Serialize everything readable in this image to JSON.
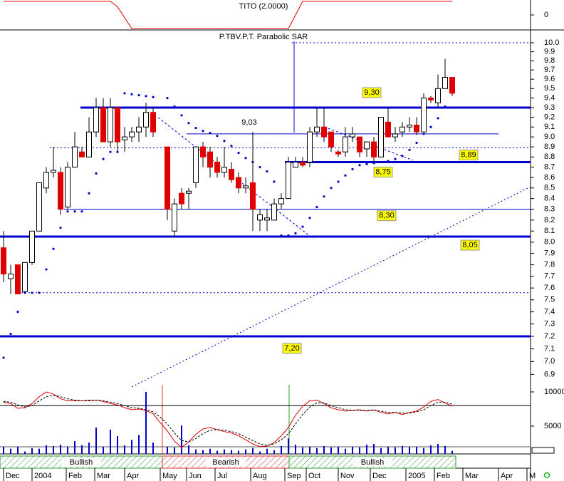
{
  "chart_data": [
    {
      "type": "line",
      "title": "TITO (2.0000)",
      "x": [
        0,
        1,
        2,
        3,
        4,
        5,
        6,
        7,
        8,
        9,
        10,
        11,
        12,
        13,
        14,
        15,
        16,
        17,
        18,
        19,
        20,
        21,
        22,
        23,
        24,
        25,
        26,
        27,
        28,
        29,
        30,
        31,
        32,
        33,
        34,
        35,
        36,
        37,
        38,
        39,
        40,
        41,
        42,
        43,
        44,
        45,
        46,
        47,
        48,
        49,
        50,
        51,
        52,
        53,
        54,
        55,
        56,
        57,
        58,
        59,
        60,
        61,
        62,
        63
      ],
      "series": [
        {
          "color": "#e00000",
          "values": [
            1,
            1,
            1,
            1,
            1,
            1,
            1,
            1,
            1,
            1,
            1,
            1,
            1,
            1,
            1,
            1,
            0.6,
            -0.2,
            -1,
            -1,
            -1,
            -1,
            -1,
            -1,
            -1,
            -1,
            -1,
            -1,
            -1,
            -1,
            -1,
            -1,
            -1,
            -1,
            -1,
            -1,
            -1,
            -1,
            -1,
            -1,
            -1,
            0,
            1,
            1,
            1,
            1,
            1,
            1,
            1,
            1,
            1,
            1,
            1,
            1,
            1,
            1,
            1,
            1,
            1,
            1,
            1,
            1,
            1,
            1
          ]
        }
      ],
      "xlim": [
        -0.5,
        74
      ],
      "ylim": [
        -1.1,
        1.1
      ],
      "yticks": [
        0
      ]
    },
    {
      "type": "candlestick",
      "title": "P.TBV.P.T. Parabolic SAR",
      "x": [
        0,
        1,
        2,
        3,
        4,
        5,
        6,
        7,
        8,
        9,
        10,
        11,
        12,
        13,
        14,
        15,
        16,
        17,
        18,
        19,
        20,
        21,
        22,
        23,
        24,
        25,
        26,
        27,
        28,
        29,
        30,
        31,
        32,
        33,
        34,
        35,
        36,
        37,
        38,
        39,
        40,
        41,
        42,
        43,
        44,
        45,
        46,
        47,
        48,
        49,
        50,
        51,
        52,
        53,
        54,
        55,
        56,
        57,
        58,
        59,
        60,
        61,
        62,
        63
      ],
      "open": [
        7.95,
        7.68,
        7.8,
        7.57,
        7.82,
        8.1,
        8.5,
        8.65,
        8.65,
        8.32,
        8.7,
        8.85,
        8.8,
        9.05,
        9.3,
        8.95,
        9.3,
        8.97,
        9.0,
        9.05,
        9.1,
        9.25,
        null,
        8.9,
        8.1,
        8.45,
        8.45,
        8.55,
        8.9,
        8.85,
        8.75,
        8.65,
        8.68,
        8.6,
        8.5,
        8.55,
        8.2,
        8.2,
        8.2,
        8.35,
        8.4,
        8.7,
        8.75,
        8.75,
        9.05,
        9.1,
        9.05,
        8.85,
        8.85,
        9.0,
        9.0,
        8.88,
        8.95,
        8.8,
        9.15,
        9.0,
        9.05,
        9.1,
        9.12,
        9.05,
        9.4,
        9.35,
        9.5,
        9.62
      ],
      "high": [
        8.1,
        7.8,
        7.8,
        7.82,
        8.1,
        8.55,
        8.7,
        8.9,
        8.7,
        8.75,
        9.05,
        8.9,
        9.2,
        9.4,
        9.4,
        9.4,
        9.3,
        9.1,
        9.1,
        9.2,
        9.35,
        9.3,
        null,
        8.9,
        8.4,
        8.5,
        8.5,
        8.9,
        8.95,
        8.9,
        8.8,
        8.9,
        8.75,
        8.65,
        8.6,
        9.05,
        8.3,
        8.3,
        8.4,
        8.45,
        8.8,
        8.8,
        8.8,
        9.1,
        9.3,
        9.3,
        9.05,
        8.87,
        9.1,
        9.1,
        9.0,
        8.95,
        9.0,
        9.2,
        9.3,
        9.1,
        9.15,
        9.2,
        9.2,
        9.45,
        9.42,
        9.65,
        9.82,
        9.62
      ],
      "low": [
        7.65,
        7.55,
        7.55,
        7.55,
        7.8,
        8.1,
        8.45,
        8.6,
        8.25,
        8.3,
        8.7,
        8.8,
        8.8,
        9.0,
        8.95,
        8.9,
        8.85,
        8.85,
        8.95,
        8.95,
        9.0,
        9.0,
        null,
        8.2,
        8.05,
        8.3,
        8.3,
        8.5,
        8.7,
        8.6,
        8.6,
        8.6,
        8.55,
        8.45,
        8.45,
        8.1,
        8.1,
        8.1,
        8.2,
        8.3,
        8.4,
        8.7,
        8.7,
        8.7,
        9.0,
        8.95,
        8.85,
        8.8,
        8.8,
        8.95,
        8.8,
        8.8,
        8.75,
        8.8,
        9.0,
        8.95,
        9.0,
        9.05,
        9.02,
        9.05,
        9.35,
        9.3,
        9.5,
        9.42
      ],
      "close": [
        7.72,
        7.72,
        7.55,
        7.82,
        8.1,
        8.55,
        8.65,
        8.67,
        8.3,
        8.7,
        8.9,
        8.8,
        9.05,
        9.3,
        8.95,
        9.3,
        8.95,
        9.0,
        9.05,
        9.1,
        9.25,
        9.05,
        null,
        8.3,
        8.35,
        8.35,
        8.47,
        8.9,
        8.8,
        8.7,
        8.65,
        8.7,
        8.58,
        8.5,
        8.52,
        8.3,
        8.25,
        8.22,
        8.35,
        8.4,
        8.75,
        8.75,
        8.72,
        9.05,
        9.1,
        9.0,
        8.9,
        8.83,
        9.0,
        9.03,
        8.85,
        8.95,
        8.8,
        9.2,
        9.0,
        9.03,
        9.1,
        9.12,
        9.05,
        9.4,
        9.38,
        9.5,
        9.62,
        9.45
      ],
      "color_up": "#ffffff",
      "color_down": "#e00000",
      "sar": {
        "color": "#0000cc",
        "values": [
          7.03,
          7.22,
          7.4,
          7.56,
          7.56,
          7.56,
          7.76,
          7.94,
          8.13,
          8.28,
          8.28,
          8.28,
          8.45,
          8.64,
          8.78,
          8.85,
          8.85,
          9.45,
          9.44,
          9.43,
          9.42,
          9.41,
          null,
          9.4,
          9.31,
          9.22,
          9.14,
          9.09,
          9.06,
          9.04,
          9.01,
          8.96,
          8.91,
          8.84,
          8.79,
          8.75,
          8.7,
          8.66,
          8.56,
          8.06,
          8.06,
          8.08,
          8.14,
          8.22,
          8.32,
          8.42,
          8.5,
          8.56,
          8.62,
          8.68,
          8.72,
          8.73,
          8.74,
          8.75,
          8.76,
          8.78,
          8.81,
          8.87,
          8.94,
          9.03,
          9.1,
          9.19,
          9.31,
          null
        ]
      },
      "level_color": "#0000cc",
      "levels": [
        {
          "value": 9.3,
          "label": "9,30",
          "style": "thick",
          "box": true
        },
        {
          "value": 9.03,
          "label": "9,03",
          "style": "thin",
          "box": false
        },
        {
          "value": 8.89,
          "label": "8,89",
          "style": "dotted",
          "box": true
        },
        {
          "value": 8.75,
          "label": "8,75",
          "style": "thick",
          "box": true
        },
        {
          "value": 8.3,
          "label": "8,30",
          "style": "thin",
          "box": true
        },
        {
          "value": 8.05,
          "label": "8,05",
          "style": "thick",
          "box": true
        },
        {
          "value": 7.56,
          "style": "dotted"
        },
        {
          "value": 7.2,
          "label": "7,20",
          "style": "thick",
          "box": true
        },
        {
          "value": 10.0,
          "style": "dotted"
        }
      ],
      "log_scale": true,
      "xlim": [
        -0.5,
        74
      ],
      "ylim": [
        6.82,
        10.12
      ],
      "yticks": [
        {
          "value": 10,
          "label": "10.0"
        },
        9.9,
        9.8,
        9.7,
        9.6,
        9.5,
        9.4,
        9.3,
        9.2,
        9.1,
        {
          "value": 9,
          "label": "9.0"
        },
        8.9,
        8.8,
        8.7,
        8.6,
        8.5,
        8.4,
        8.3,
        8.2,
        8.1,
        {
          "value": 8,
          "label": "8.0"
        },
        7.9,
        7.8,
        7.7,
        7.6,
        7.5,
        7.4,
        7.3,
        7.2,
        7.1,
        {
          "value": 7,
          "label": "7.0"
        },
        6.9
      ]
    },
    {
      "type": "bar",
      "x": [
        0,
        1,
        2,
        3,
        4,
        5,
        6,
        7,
        8,
        9,
        10,
        11,
        12,
        13,
        14,
        15,
        16,
        17,
        18,
        19,
        20,
        21,
        22,
        23,
        24,
        25,
        26,
        27,
        28,
        29,
        30,
        31,
        32,
        33,
        34,
        35,
        36,
        37,
        38,
        39,
        40,
        41,
        42,
        43,
        44,
        45,
        46,
        47,
        48,
        49,
        50,
        51,
        52,
        53,
        54,
        55,
        56,
        57,
        58,
        59,
        60,
        61,
        62,
        63
      ],
      "series": [
        {
          "color": "#0000cc",
          "values": [
            2000,
            1700,
            2000,
            1300,
            1800,
            1700,
            2200,
            2100,
            2300,
            2000,
            2800,
            2200,
            2600,
            4800,
            2000,
            4480,
            3540,
            2200,
            3000,
            3700,
            10000,
            2600,
            null,
            2000,
            1900,
            5100,
            2200,
            1600,
            1500,
            1700,
            1400,
            1600,
            1500,
            1400,
            1600,
            1800,
            1300,
            1700,
            1500,
            2100,
            3200,
            2300,
            1900,
            2000,
            1800,
            2100,
            1900,
            2000,
            1700,
            2000,
            1900,
            2300,
            2400,
            1800,
            2000,
            1900,
            2100,
            2000,
            2000,
            1800,
            2200,
            2400,
            2100,
            1400
          ]
        }
      ],
      "lines": [
        {
          "color": "#e00000",
          "dashed": false,
          "values": [
            8500,
            8300,
            7600,
            7700,
            8300,
            9300,
            10000,
            9700,
            9000,
            8700,
            8700,
            8700,
            8800,
            8800,
            8600,
            8300,
            8100,
            7700,
            7400,
            7500,
            7300,
            6800,
            5500,
            4300,
            2800,
            1900,
            2700,
            3800,
            4600,
            4800,
            4500,
            4200,
            4000,
            3600,
            3000,
            2400,
            2000,
            2100,
            2600,
            3600,
            4800,
            6600,
            7900,
            8700,
            8800,
            8300,
            7700,
            7400,
            7200,
            7300,
            7400,
            7200,
            7400,
            7000,
            6800,
            7000,
            6700,
            7000,
            7200,
            7800,
            8600,
            8900,
            8400,
            7900
          ]
        },
        {
          "color": "#000000",
          "dashed": true,
          "values": [
            8600,
            8500,
            8100,
            7800,
            8000,
            8700,
            9300,
            9500,
            9300,
            9000,
            8800,
            8700,
            8700,
            8800,
            8700,
            8500,
            8300,
            8000,
            7700,
            7600,
            7400,
            7100,
            6300,
            5300,
            4000,
            2900,
            2700,
            3200,
            3900,
            4400,
            4500,
            4400,
            4200,
            3900,
            3400,
            2900,
            2400,
            2200,
            2400,
            3000,
            3900,
            5300,
            6700,
            7800,
            8400,
            8400,
            8000,
            7700,
            7400,
            7300,
            7300,
            7300,
            7300,
            7200,
            7000,
            7000,
            6900,
            6900,
            7100,
            7400,
            8000,
            8500,
            8500,
            8200
          ]
        }
      ],
      "reference": 8000,
      "regimes": [
        {
          "label": "Bullish",
          "from": -0.5,
          "to": 22.3,
          "color": "#2e9e2e"
        },
        {
          "label": "Bearish",
          "from": 22.3,
          "to": 40.1,
          "color": "#e03030"
        },
        {
          "label": "Bullish",
          "from": 40.1,
          "to": 63.5,
          "color": "#2e9e2e"
        }
      ],
      "xlim": [
        -0.5,
        74
      ],
      "ylim": [
        940,
        11040
      ],
      "yticks": [
        10000,
        5000
      ],
      "xticks": [
        {
          "value": 0,
          "label": "Dec"
        },
        {
          "value": 4,
          "label": "2004"
        },
        {
          "value": 8.8,
          "label": "Feb"
        },
        {
          "value": 12.8,
          "label": "Mar"
        },
        {
          "value": 17,
          "label": "Apr"
        },
        {
          "value": 22,
          "label": "May"
        },
        {
          "value": 25.7,
          "label": "Jun"
        },
        {
          "value": 29.7,
          "label": "Jul"
        },
        {
          "value": 34.7,
          "label": "Aug"
        },
        {
          "value": 39.5,
          "label": "Sep"
        },
        {
          "value": 42.5,
          "label": "Oct"
        },
        {
          "value": 47,
          "label": "Nov"
        },
        {
          "value": 51.5,
          "label": "Dec"
        },
        {
          "value": 56.5,
          "label": "2005"
        },
        {
          "value": 60.5,
          "label": "Feb"
        },
        {
          "value": 64.5,
          "label": "Mar"
        },
        {
          "value": 69.5,
          "label": "Apr"
        },
        {
          "value": 73.5,
          "label": "M"
        }
      ]
    }
  ]
}
